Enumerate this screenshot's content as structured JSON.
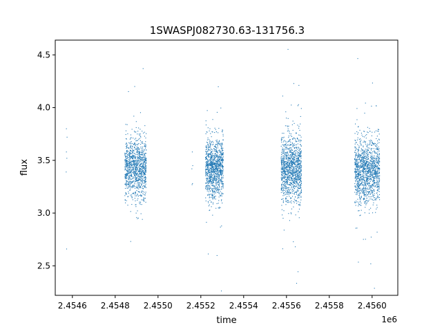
{
  "chart_data": {
    "type": "scatter",
    "title": "1SWASPJ082730.63-131756.3",
    "xlabel": "time",
    "ylabel": "flux",
    "x_offset_label": "1e6",
    "xlim": [
      2454520,
      2456120
    ],
    "ylim": [
      2.22,
      4.64
    ],
    "x_ticks": [
      2454600,
      2454800,
      2455000,
      2455200,
      2455400,
      2455600,
      2455800,
      2456000
    ],
    "x_tick_labels": [
      "2.4546",
      "2.4548",
      "2.4550",
      "2.4552",
      "2.4554",
      "2.4556",
      "2.4558",
      "2.4560"
    ],
    "y_ticks": [
      2.5,
      3.0,
      3.5,
      4.0,
      4.5
    ],
    "y_tick_labels": [
      "2.5",
      "3.0",
      "3.5",
      "4.0",
      "4.5"
    ],
    "grid": false,
    "marker_color": "#1f77b4",
    "seasons": [
      {
        "x_start": 2454845,
        "x_end": 2454945,
        "center": 3.42,
        "spread": 0.14,
        "count": 1100
      },
      {
        "x_start": 2455222,
        "x_end": 2455305,
        "center": 3.42,
        "spread": 0.14,
        "count": 1100
      },
      {
        "x_start": 2455575,
        "x_end": 2455670,
        "center": 3.42,
        "spread": 0.15,
        "count": 1200
      },
      {
        "x_start": 2455918,
        "x_end": 2456035,
        "center": 3.4,
        "spread": 0.15,
        "count": 1300
      }
    ],
    "isolated_points": [
      {
        "x": 2454572,
        "y": 3.8
      },
      {
        "x": 2454575,
        "y": 3.72
      },
      {
        "x": 2454572,
        "y": 3.58
      },
      {
        "x": 2454574,
        "y": 3.52
      },
      {
        "x": 2454571,
        "y": 3.39
      },
      {
        "x": 2454573,
        "y": 2.66
      },
      {
        "x": 2455160,
        "y": 3.58
      },
      {
        "x": 2455162,
        "y": 3.45
      },
      {
        "x": 2455158,
        "y": 3.42
      },
      {
        "x": 2455161,
        "y": 3.28
      },
      {
        "x": 2455159,
        "y": 3.27
      }
    ]
  }
}
